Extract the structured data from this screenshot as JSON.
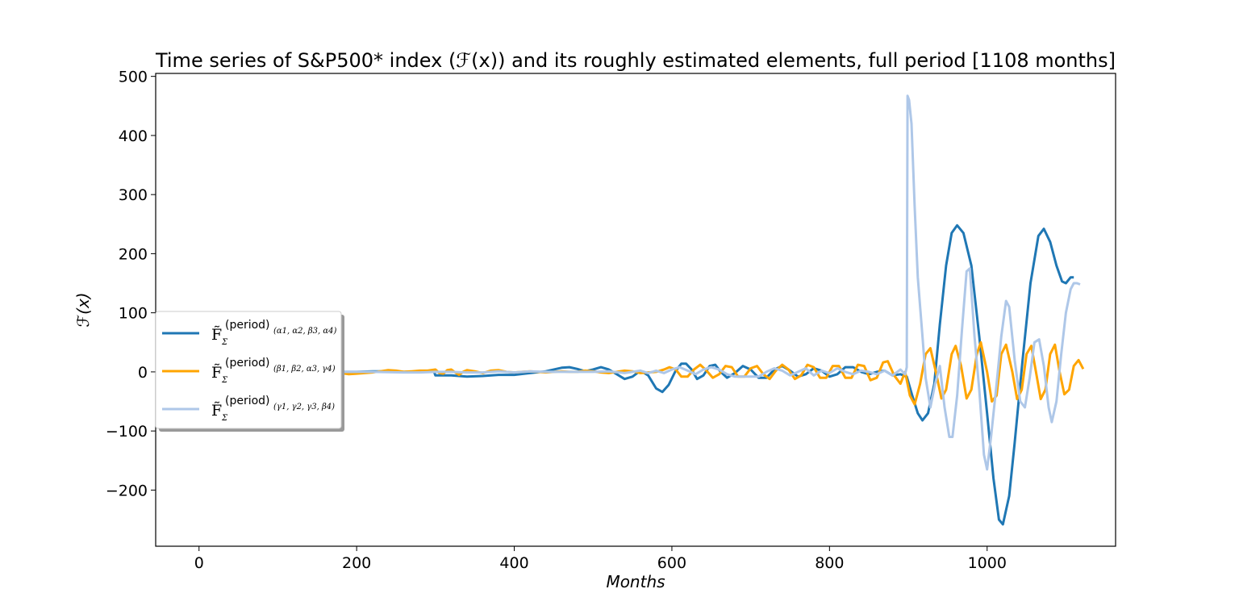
{
  "chart_data": {
    "type": "line",
    "title": "Time series of S&P500* index (ℱ(x)) and its roughly estimated elements, full period [1108 months]",
    "xlabel": "Months",
    "ylabel": "ℱ(x)",
    "xlim": [
      -55,
      1163
    ],
    "ylim": [
      -295,
      505
    ],
    "xticks": [
      0,
      200,
      400,
      600,
      800,
      1000
    ],
    "yticks": [
      -200,
      -100,
      0,
      100,
      200,
      300,
      400,
      500
    ],
    "xtick_labels": [
      "0",
      "200",
      "400",
      "600",
      "800",
      "1000"
    ],
    "ytick_labels": [
      "−200",
      "−100",
      "0",
      "100",
      "200",
      "300",
      "400",
      "500"
    ],
    "grid": false,
    "legend_position": "center-left",
    "series": [
      {
        "name": "F̃Σ (period)(α1, α2, β3, α4)",
        "legend_main": "F̃",
        "legend_sub_sigma": "Σ",
        "legend_sup": "(period)",
        "legend_sup_sub": "(α1, α2, β3, α4)",
        "color": "#1f77b4",
        "points": [
          [
            180,
            0
          ],
          [
            200,
            0
          ],
          [
            220,
            1
          ],
          [
            240,
            1
          ],
          [
            260,
            0
          ],
          [
            280,
            1
          ],
          [
            298,
            1
          ],
          [
            300,
            -6
          ],
          [
            320,
            -6
          ],
          [
            340,
            -8
          ],
          [
            360,
            -7
          ],
          [
            380,
            -5
          ],
          [
            400,
            -5
          ],
          [
            420,
            -2
          ],
          [
            440,
            1
          ],
          [
            460,
            7
          ],
          [
            470,
            8
          ],
          [
            480,
            5
          ],
          [
            490,
            1
          ],
          [
            500,
            4
          ],
          [
            510,
            8
          ],
          [
            520,
            4
          ],
          [
            530,
            -4
          ],
          [
            540,
            -12
          ],
          [
            550,
            -8
          ],
          [
            560,
            2
          ],
          [
            570,
            -6
          ],
          [
            580,
            -28
          ],
          [
            588,
            -34
          ],
          [
            596,
            -22
          ],
          [
            604,
            0
          ],
          [
            612,
            14
          ],
          [
            618,
            14
          ],
          [
            625,
            4
          ],
          [
            632,
            -12
          ],
          [
            640,
            -6
          ],
          [
            648,
            10
          ],
          [
            655,
            12
          ],
          [
            662,
            0
          ],
          [
            670,
            -10
          ],
          [
            680,
            -2
          ],
          [
            690,
            10
          ],
          [
            700,
            4
          ],
          [
            710,
            -10
          ],
          [
            720,
            -10
          ],
          [
            730,
            4
          ],
          [
            740,
            10
          ],
          [
            750,
            2
          ],
          [
            760,
            -8
          ],
          [
            770,
            -4
          ],
          [
            780,
            6
          ],
          [
            790,
            2
          ],
          [
            800,
            -8
          ],
          [
            810,
            -4
          ],
          [
            820,
            8
          ],
          [
            830,
            8
          ],
          [
            840,
            0
          ],
          [
            850,
            -4
          ],
          [
            860,
            0
          ],
          [
            870,
            2
          ],
          [
            880,
            -6
          ],
          [
            890,
            -4
          ],
          [
            898,
            -8
          ],
          [
            905,
            -40
          ],
          [
            912,
            -70
          ],
          [
            918,
            -82
          ],
          [
            925,
            -70
          ],
          [
            933,
            -20
          ],
          [
            940,
            80
          ],
          [
            948,
            180
          ],
          [
            955,
            235
          ],
          [
            962,
            248
          ],
          [
            970,
            235
          ],
          [
            980,
            180
          ],
          [
            990,
            60
          ],
          [
            1000,
            -70
          ],
          [
            1008,
            -180
          ],
          [
            1015,
            -250
          ],
          [
            1020,
            -258
          ],
          [
            1028,
            -210
          ],
          [
            1035,
            -120
          ],
          [
            1045,
            20
          ],
          [
            1055,
            150
          ],
          [
            1065,
            230
          ],
          [
            1072,
            242
          ],
          [
            1080,
            220
          ],
          [
            1088,
            180
          ],
          [
            1095,
            153
          ],
          [
            1100,
            150
          ],
          [
            1106,
            160
          ],
          [
            1110,
            160
          ]
        ]
      },
      {
        "name": "F̃Σ (period)(β1, β2, α3, γ4)",
        "legend_main": "F̃",
        "legend_sub_sigma": "Σ",
        "legend_sup": "(period)",
        "legend_sup_sub": "(β1, β2, α3, γ4)",
        "color": "#ffa500",
        "points": [
          [
            180,
            -2
          ],
          [
            190,
            -4
          ],
          [
            200,
            -3
          ],
          [
            210,
            -2
          ],
          [
            220,
            -1
          ],
          [
            230,
            1
          ],
          [
            240,
            3
          ],
          [
            250,
            2
          ],
          [
            260,
            0
          ],
          [
            270,
            1
          ],
          [
            280,
            2
          ],
          [
            290,
            2
          ],
          [
            300,
            4
          ],
          [
            305,
            -2
          ],
          [
            310,
            -3
          ],
          [
            315,
            3
          ],
          [
            320,
            4
          ],
          [
            325,
            -1
          ],
          [
            330,
            -5
          ],
          [
            335,
            0
          ],
          [
            340,
            3
          ],
          [
            350,
            1
          ],
          [
            360,
            -2
          ],
          [
            370,
            2
          ],
          [
            380,
            3
          ],
          [
            390,
            0
          ],
          [
            400,
            -1
          ],
          [
            410,
            0
          ],
          [
            420,
            1
          ],
          [
            430,
            0
          ],
          [
            440,
            -1
          ],
          [
            450,
            0
          ],
          [
            460,
            1
          ],
          [
            470,
            0
          ],
          [
            480,
            0
          ],
          [
            490,
            2
          ],
          [
            500,
            1
          ],
          [
            510,
            -1
          ],
          [
            520,
            -2
          ],
          [
            530,
            0
          ],
          [
            540,
            2
          ],
          [
            550,
            1
          ],
          [
            560,
            -2
          ],
          [
            570,
            -1
          ],
          [
            580,
            0
          ],
          [
            590,
            4
          ],
          [
            597,
            8
          ],
          [
            605,
            4
          ],
          [
            612,
            -8
          ],
          [
            620,
            -8
          ],
          [
            628,
            4
          ],
          [
            636,
            12
          ],
          [
            644,
            2
          ],
          [
            652,
            -10
          ],
          [
            660,
            -4
          ],
          [
            668,
            10
          ],
          [
            676,
            8
          ],
          [
            684,
            -8
          ],
          [
            692,
            -8
          ],
          [
            700,
            6
          ],
          [
            708,
            10
          ],
          [
            716,
            -4
          ],
          [
            724,
            -12
          ],
          [
            732,
            2
          ],
          [
            740,
            12
          ],
          [
            748,
            4
          ],
          [
            756,
            -12
          ],
          [
            764,
            -6
          ],
          [
            772,
            12
          ],
          [
            780,
            8
          ],
          [
            788,
            -10
          ],
          [
            796,
            -10
          ],
          [
            804,
            10
          ],
          [
            812,
            10
          ],
          [
            820,
            -10
          ],
          [
            828,
            -10
          ],
          [
            836,
            12
          ],
          [
            844,
            10
          ],
          [
            852,
            -14
          ],
          [
            860,
            -10
          ],
          [
            868,
            16
          ],
          [
            874,
            18
          ],
          [
            882,
            -6
          ],
          [
            890,
            -20
          ],
          [
            896,
            0
          ],
          [
            902,
            -40
          ],
          [
            908,
            -55
          ],
          [
            915,
            -20
          ],
          [
            922,
            30
          ],
          [
            928,
            40
          ],
          [
            935,
            0
          ],
          [
            942,
            -45
          ],
          [
            948,
            -30
          ],
          [
            955,
            30
          ],
          [
            960,
            44
          ],
          [
            967,
            10
          ],
          [
            974,
            -45
          ],
          [
            980,
            -30
          ],
          [
            987,
            30
          ],
          [
            992,
            50
          ],
          [
            1000,
            0
          ],
          [
            1006,
            -50
          ],
          [
            1012,
            -40
          ],
          [
            1018,
            30
          ],
          [
            1024,
            46
          ],
          [
            1032,
            0
          ],
          [
            1038,
            -46
          ],
          [
            1044,
            -30
          ],
          [
            1050,
            30
          ],
          [
            1056,
            44
          ],
          [
            1062,
            0
          ],
          [
            1068,
            -46
          ],
          [
            1074,
            -30
          ],
          [
            1080,
            30
          ],
          [
            1086,
            46
          ],
          [
            1092,
            0
          ],
          [
            1098,
            -38
          ],
          [
            1104,
            -30
          ],
          [
            1110,
            10
          ],
          [
            1116,
            20
          ],
          [
            1122,
            5
          ]
        ]
      },
      {
        "name": "F̃Σ (period)(γ1, γ2, γ3, β4)",
        "legend_main": "F̃",
        "legend_sub_sigma": "Σ",
        "legend_sup": "(period)",
        "legend_sup_sub": "(γ1, γ2, γ3, β4)",
        "color": "#aec7e8",
        "points": [
          [
            180,
            0
          ],
          [
            220,
            0
          ],
          [
            260,
            -1
          ],
          [
            280,
            -1
          ],
          [
            300,
            0
          ],
          [
            320,
            0
          ],
          [
            340,
            -1
          ],
          [
            360,
            -1
          ],
          [
            380,
            1
          ],
          [
            400,
            -1
          ],
          [
            420,
            1
          ],
          [
            440,
            0
          ],
          [
            460,
            0
          ],
          [
            480,
            0
          ],
          [
            500,
            0
          ],
          [
            520,
            1
          ],
          [
            540,
            -2
          ],
          [
            560,
            2
          ],
          [
            570,
            -2
          ],
          [
            580,
            2
          ],
          [
            590,
            -2
          ],
          [
            600,
            4
          ],
          [
            610,
            8
          ],
          [
            620,
            2
          ],
          [
            630,
            -4
          ],
          [
            640,
            4
          ],
          [
            650,
            8
          ],
          [
            660,
            4
          ],
          [
            670,
            -4
          ],
          [
            680,
            -8
          ],
          [
            690,
            -8
          ],
          [
            700,
            -8
          ],
          [
            710,
            -8
          ],
          [
            720,
            0
          ],
          [
            730,
            6
          ],
          [
            740,
            2
          ],
          [
            750,
            -6
          ],
          [
            760,
            0
          ],
          [
            770,
            6
          ],
          [
            780,
            -6
          ],
          [
            790,
            2
          ],
          [
            800,
            -2
          ],
          [
            810,
            6
          ],
          [
            820,
            0
          ],
          [
            830,
            -4
          ],
          [
            840,
            2
          ],
          [
            850,
            0
          ],
          [
            860,
            -4
          ],
          [
            870,
            2
          ],
          [
            880,
            -6
          ],
          [
            890,
            4
          ],
          [
            896,
            -4
          ],
          [
            898,
            8
          ],
          [
            899,
            467
          ],
          [
            901,
            460
          ],
          [
            904,
            420
          ],
          [
            908,
            280
          ],
          [
            912,
            160
          ],
          [
            918,
            60
          ],
          [
            922,
            -10
          ],
          [
            928,
            -60
          ],
          [
            934,
            -20
          ],
          [
            940,
            10
          ],
          [
            946,
            -60
          ],
          [
            952,
            -110
          ],
          [
            956,
            -110
          ],
          [
            962,
            -40
          ],
          [
            968,
            70
          ],
          [
            974,
            170
          ],
          [
            978,
            175
          ],
          [
            984,
            60
          ],
          [
            990,
            -30
          ],
          [
            996,
            -140
          ],
          [
            1000,
            -165
          ],
          [
            1005,
            -110
          ],
          [
            1012,
            -20
          ],
          [
            1018,
            60
          ],
          [
            1024,
            120
          ],
          [
            1028,
            110
          ],
          [
            1035,
            20
          ],
          [
            1042,
            -50
          ],
          [
            1048,
            -60
          ],
          [
            1054,
            -10
          ],
          [
            1060,
            50
          ],
          [
            1066,
            55
          ],
          [
            1072,
            10
          ],
          [
            1078,
            -60
          ],
          [
            1082,
            -85
          ],
          [
            1088,
            -50
          ],
          [
            1094,
            30
          ],
          [
            1100,
            100
          ],
          [
            1106,
            140
          ],
          [
            1110,
            150
          ],
          [
            1114,
            150
          ],
          [
            1118,
            148
          ]
        ]
      }
    ]
  }
}
